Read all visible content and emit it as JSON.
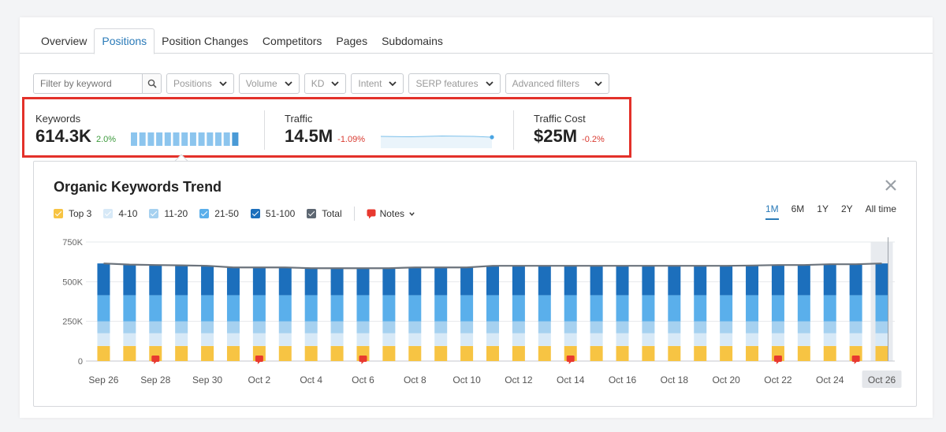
{
  "tabs": [
    "Overview",
    "Positions",
    "Position Changes",
    "Competitors",
    "Pages",
    "Subdomains"
  ],
  "active_tab": "Positions",
  "filters": {
    "search_placeholder": "Filter by keyword",
    "dropdowns": [
      "Positions",
      "Volume",
      "KD",
      "Intent",
      "SERP features",
      "Advanced filters"
    ]
  },
  "metrics": {
    "keywords": {
      "label": "Keywords",
      "value": "614.3K",
      "delta": "2.0%",
      "delta_color": "#3c9a3c"
    },
    "traffic": {
      "label": "Traffic",
      "value": "14.5M",
      "delta": "-1.09%",
      "delta_color": "#d93a30"
    },
    "traffic_cost": {
      "label": "Traffic Cost",
      "value": "$25M",
      "delta": "-0.2%",
      "delta_color": "#d93a30"
    }
  },
  "trend": {
    "title": "Organic Keywords Trend",
    "legend": [
      {
        "name": "Top 3",
        "color": "#f7c443"
      },
      {
        "name": "4-10",
        "color": "#d7e9f7"
      },
      {
        "name": "11-20",
        "color": "#a6d1f0"
      },
      {
        "name": "21-50",
        "color": "#5aafeb"
      },
      {
        "name": "51-100",
        "color": "#1c6fbc"
      },
      {
        "name": "Total",
        "color": "#5d6772"
      }
    ],
    "notes_label": "Notes",
    "notes_color": "#e8392f",
    "periods": [
      "1M",
      "6M",
      "1Y",
      "2Y",
      "All time"
    ],
    "active_period": "1M"
  },
  "chart_data": {
    "type": "bar",
    "stacked": true,
    "ylim": [
      0,
      750000
    ],
    "yticks": [
      "0",
      "250K",
      "500K",
      "750K"
    ],
    "ytick_values": [
      0,
      250000,
      500000,
      750000
    ],
    "xtick_labels": [
      "Sep 26",
      "Sep 28",
      "Sep 30",
      "Oct 2",
      "Oct 4",
      "Oct 6",
      "Oct 8",
      "Oct 10",
      "Oct 12",
      "Oct 14",
      "Oct 16",
      "Oct 18",
      "Oct 20",
      "Oct 22",
      "Oct 24",
      "Oct 26"
    ],
    "categories": [
      "Sep 26",
      "Sep 27",
      "Sep 28",
      "Sep 29",
      "Sep 30",
      "Oct 1",
      "Oct 2",
      "Oct 3",
      "Oct 4",
      "Oct 5",
      "Oct 6",
      "Oct 7",
      "Oct 8",
      "Oct 9",
      "Oct 10",
      "Oct 11",
      "Oct 12",
      "Oct 13",
      "Oct 14",
      "Oct 15",
      "Oct 16",
      "Oct 17",
      "Oct 18",
      "Oct 19",
      "Oct 20",
      "Oct 21",
      "Oct 22",
      "Oct 23",
      "Oct 24",
      "Oct 25",
      "Oct 26"
    ],
    "series": [
      {
        "name": "Top 3",
        "values": [
          95000,
          95000,
          95000,
          95000,
          95000,
          95000,
          95000,
          95000,
          95000,
          95000,
          95000,
          95000,
          95000,
          95000,
          95000,
          95000,
          95000,
          95000,
          95000,
          95000,
          95000,
          95000,
          95000,
          95000,
          95000,
          95000,
          95000,
          95000,
          95000,
          95000,
          95000
        ]
      },
      {
        "name": "4-10",
        "values": [
          80000,
          80000,
          80000,
          80000,
          80000,
          80000,
          80000,
          80000,
          80000,
          80000,
          80000,
          80000,
          80000,
          80000,
          80000,
          80000,
          80000,
          80000,
          80000,
          80000,
          80000,
          80000,
          80000,
          80000,
          80000,
          80000,
          80000,
          80000,
          80000,
          80000,
          80000
        ]
      },
      {
        "name": "11-20",
        "values": [
          75000,
          75000,
          75000,
          75000,
          75000,
          75000,
          75000,
          75000,
          75000,
          75000,
          75000,
          75000,
          75000,
          75000,
          75000,
          75000,
          75000,
          75000,
          75000,
          75000,
          75000,
          75000,
          75000,
          75000,
          75000,
          75000,
          75000,
          75000,
          75000,
          75000,
          75000
        ]
      },
      {
        "name": "21-50",
        "values": [
          165000,
          165000,
          165000,
          165000,
          165000,
          165000,
          165000,
          165000,
          165000,
          165000,
          165000,
          165000,
          165000,
          165000,
          165000,
          165000,
          165000,
          165000,
          165000,
          165000,
          165000,
          165000,
          165000,
          165000,
          165000,
          165000,
          165000,
          165000,
          165000,
          165000,
          165000
        ]
      },
      {
        "name": "51-100",
        "values": [
          200000,
          193000,
          190000,
          188000,
          185000,
          175000,
          175000,
          175000,
          170000,
          170000,
          170000,
          170000,
          175000,
          175000,
          175000,
          185000,
          185000,
          185000,
          185000,
          185000,
          185000,
          185000,
          185000,
          185000,
          185000,
          187000,
          190000,
          190000,
          195000,
          195000,
          200000
        ]
      }
    ],
    "total": [
      615000,
      608000,
      605000,
      603000,
      600000,
      590000,
      590000,
      590000,
      585000,
      585000,
      585000,
      585000,
      590000,
      590000,
      590000,
      600000,
      600000,
      600000,
      600000,
      600000,
      600000,
      600000,
      600000,
      600000,
      600000,
      602000,
      605000,
      605000,
      610000,
      610000,
      615000
    ],
    "note_markers": [
      "Sep 28",
      "Oct 2",
      "Oct 6",
      "Oct 14",
      "Oct 22",
      "Oct 25"
    ],
    "highlighted": "Oct 26",
    "legend_position": "top-left",
    "grid": true
  }
}
